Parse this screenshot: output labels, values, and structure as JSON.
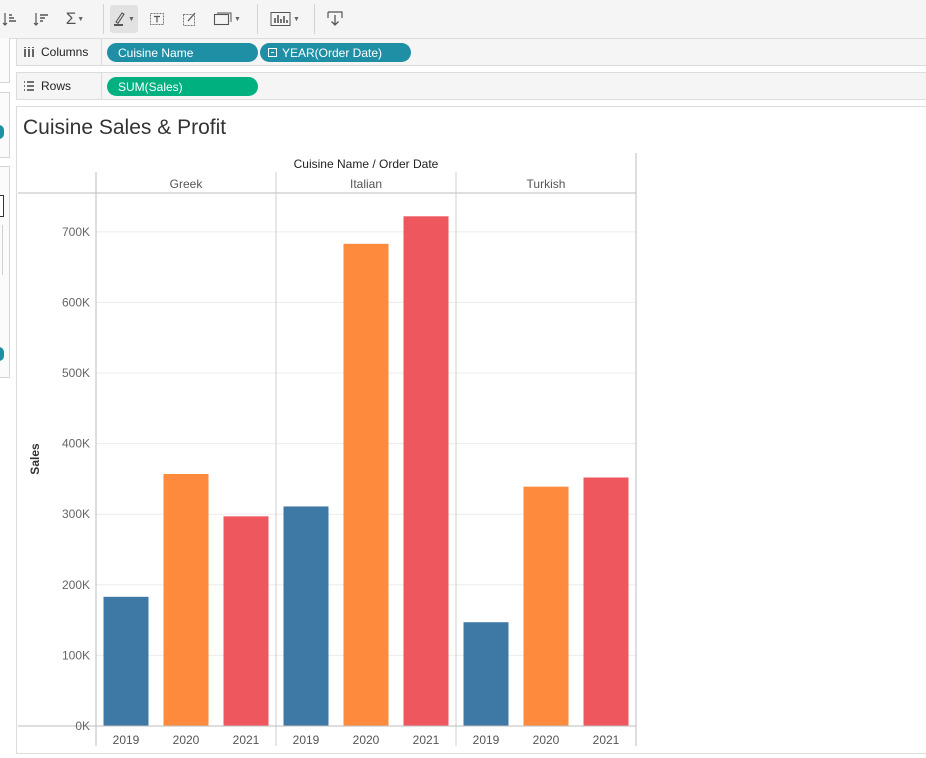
{
  "shelves": {
    "columns": {
      "label": "Columns",
      "pills": [
        "Cuisine Name",
        "YEAR(Order Date)"
      ]
    },
    "rows": {
      "label": "Rows",
      "pills": [
        "SUM(Sales)"
      ]
    }
  },
  "colors": {
    "2019": "#3e78a5",
    "2020": "#fd8a3d",
    "2021": "#ef575e",
    "dimension_pill": "#1f8fa6",
    "measure_pill": "#00b180"
  },
  "icons": [
    "sort-ascending-icon",
    "sort-descending-icon",
    "sum-icon",
    "highlight-pen-icon",
    "text-label-icon",
    "annotate-icon",
    "fit-icon",
    "show-me-icon",
    "download-icon"
  ],
  "chart_data": {
    "type": "bar",
    "title": "Cuisine Sales & Profit",
    "header": "Cuisine Name / Order Date",
    "ylabel": "Sales",
    "ylim": [
      0,
      755000
    ],
    "yticks": [
      0,
      100000,
      200000,
      300000,
      400000,
      500000,
      600000,
      700000
    ],
    "ytick_labels": [
      "0K",
      "100K",
      "200K",
      "300K",
      "400K",
      "500K",
      "600K",
      "700K"
    ],
    "groups": [
      {
        "name": "Greek",
        "categories": [
          "2019",
          "2020",
          "2021"
        ],
        "values": [
          183000,
          357000,
          297000
        ]
      },
      {
        "name": "Italian",
        "categories": [
          "2019",
          "2020",
          "2021"
        ],
        "values": [
          311000,
          683000,
          722000
        ]
      },
      {
        "name": "Turkish",
        "categories": [
          "2019",
          "2020",
          "2021"
        ],
        "values": [
          147000,
          339000,
          352000
        ]
      }
    ],
    "grid": true
  }
}
